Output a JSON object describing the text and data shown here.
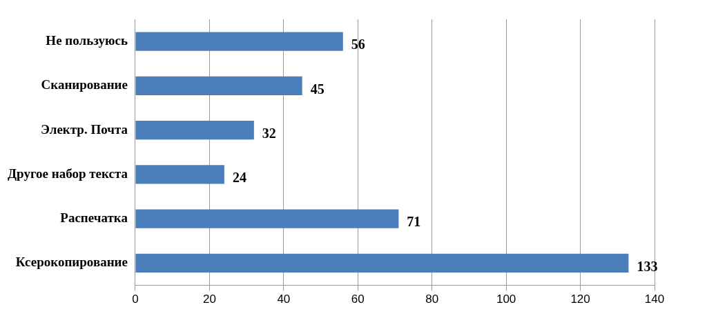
{
  "chart_data": {
    "type": "bar",
    "orientation": "horizontal",
    "categories": [
      "Не пользуюсь",
      "Сканирование",
      "Электр. Почта",
      "Другое набор текста",
      "Распечатка",
      "Ксерокопирование"
    ],
    "values": [
      56,
      45,
      32,
      24,
      71,
      133
    ],
    "color": "#4a7ebb",
    "xlim": [
      0,
      140
    ],
    "xticks": [
      0,
      20,
      40,
      60,
      80,
      100,
      120,
      140
    ],
    "grid": "x",
    "data_labels": true,
    "legend": false
  }
}
